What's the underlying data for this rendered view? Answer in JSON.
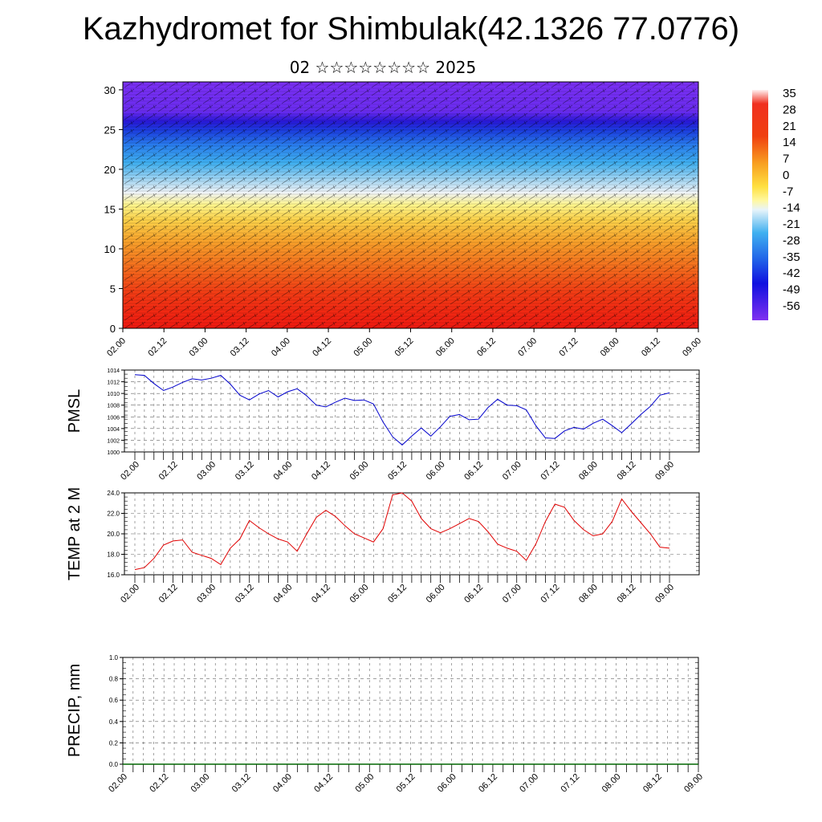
{
  "title": "Kazhydromet for Shimbulak(42.1326 77.0776)",
  "subtitle": "02 ☆☆☆☆☆☆☆☆ 2025",
  "time_labels": [
    "02.00",
    "02.12",
    "03.00",
    "03.12",
    "04.00",
    "04.12",
    "05.00",
    "05.12",
    "06.00",
    "06.12",
    "07.00",
    "07.12",
    "08.00",
    "08.12",
    "09.00"
  ],
  "precip_time_labels": [
    "02.00",
    "02.12",
    "03.00",
    "03.12",
    "04.00",
    "04.12",
    "05.00",
    "05.12",
    "06.00",
    "06.12",
    "07.00",
    "07.12",
    "08.00",
    "08.12",
    "09.00"
  ],
  "colorbar": {
    "labels": [
      "35",
      "28",
      "21",
      "14",
      "7",
      "0",
      "-7",
      "-14",
      "-21",
      "-28",
      "-35",
      "-42",
      "-49",
      "-56"
    ]
  },
  "chart_data": [
    {
      "type": "heatmap",
      "title": "",
      "xlabel": "",
      "ylabel": "",
      "x_categories": [
        "02.00",
        "02.12",
        "03.00",
        "03.12",
        "04.00",
        "04.12",
        "05.00",
        "05.12",
        "06.00",
        "06.12",
        "07.00",
        "07.12",
        "08.00",
        "08.12",
        "09.00"
      ],
      "ylim": [
        0,
        31
      ],
      "yticks": [
        "0",
        "5",
        "10",
        "15",
        "20",
        "25",
        "30"
      ],
      "colorbar_range": [
        -56,
        35
      ],
      "colors": {
        "cold": "#7b2cf0",
        "cool": "#3a7ff0",
        "mid": "#ffffff",
        "warm": "#ffd23c",
        "hot": "#e81e1e"
      },
      "temperature_by_height": [
        {
          "height": 0,
          "value": 33
        },
        {
          "height": 3,
          "value": 31
        },
        {
          "height": 6,
          "value": 25
        },
        {
          "height": 9,
          "value": 17
        },
        {
          "height": 12,
          "value": 8
        },
        {
          "height": 14,
          "value": 0
        },
        {
          "height": 16,
          "value": -7
        },
        {
          "height": 18,
          "value": -18
        },
        {
          "height": 20,
          "value": -28
        },
        {
          "height": 22,
          "value": -36
        },
        {
          "height": 24,
          "value": -45
        },
        {
          "height": 25,
          "value": -52
        },
        {
          "height": 27,
          "value": -54
        },
        {
          "height": 31,
          "value": -56
        }
      ],
      "grid": false
    },
    {
      "type": "line",
      "ylabel": "PMSL",
      "ylim": [
        1000,
        1014
      ],
      "yticks": [
        "1000",
        "1002",
        "1004",
        "1006",
        "1008",
        "1010",
        "1012",
        "1014"
      ],
      "color": "#0000cc",
      "x": [
        0,
        1,
        2,
        3,
        4,
        5,
        6,
        7,
        8,
        9,
        10,
        11,
        12,
        13,
        14,
        15,
        16,
        17,
        18,
        19,
        20,
        21,
        22,
        23,
        24,
        25,
        26,
        27,
        28,
        29,
        30,
        31,
        32,
        33,
        34,
        35,
        36,
        37,
        38,
        39,
        40,
        41,
        42,
        43,
        44,
        45,
        46,
        47,
        48,
        49,
        50,
        51,
        52,
        53,
        54,
        55,
        56
      ],
      "values": [
        1013.2,
        1013.1,
        1011.7,
        1010.5,
        1011.1,
        1011.9,
        1012.5,
        1012.3,
        1012.6,
        1013.1,
        1011.6,
        1009.7,
        1008.9,
        1009.9,
        1010.5,
        1009.4,
        1010.3,
        1010.8,
        1009.6,
        1008.0,
        1007.7,
        1008.5,
        1009.2,
        1008.8,
        1008.9,
        1008.2,
        1005.1,
        1002.6,
        1001.2,
        1002.7,
        1004.1,
        1002.7,
        1004.3,
        1006.1,
        1006.4,
        1005.5,
        1005.6,
        1007.6,
        1009.0,
        1008.0,
        1007.9,
        1007.2,
        1004.5,
        1002.4,
        1002.3,
        1003.6,
        1004.2,
        1003.9,
        1004.9,
        1005.6,
        1004.5,
        1003.3,
        1004.8,
        1006.4,
        1007.8,
        1009.7,
        1010.1
      ]
    },
    {
      "type": "line",
      "ylabel": "TEMP at 2 M",
      "ylim": [
        16,
        24
      ],
      "yticks": [
        "16.0",
        "18.0",
        "20.0",
        "22.0",
        "24.0"
      ],
      "color": "#e00000",
      "x": [
        0,
        1,
        2,
        3,
        4,
        5,
        6,
        7,
        8,
        9,
        10,
        11,
        12,
        13,
        14,
        15,
        16,
        17,
        18,
        19,
        20,
        21,
        22,
        23,
        24,
        25,
        26,
        27,
        28,
        29,
        30,
        31,
        32,
        33,
        34,
        35,
        36,
        37,
        38,
        39,
        40,
        41,
        42,
        43,
        44,
        45,
        46,
        47,
        48,
        49,
        50,
        51,
        52,
        53,
        54,
        55,
        56
      ],
      "values": [
        16.5,
        16.7,
        17.6,
        18.9,
        19.3,
        19.4,
        18.2,
        17.9,
        17.6,
        17.0,
        18.6,
        19.5,
        21.3,
        20.6,
        20.0,
        19.5,
        19.2,
        18.3,
        20.0,
        21.6,
        22.3,
        21.7,
        20.8,
        20.0,
        19.6,
        19.2,
        20.5,
        23.8,
        24.0,
        23.2,
        21.5,
        20.5,
        20.1,
        20.5,
        21.0,
        21.5,
        21.2,
        20.2,
        19.0,
        18.6,
        18.3,
        17.4,
        19.0,
        21.2,
        22.9,
        22.6,
        21.3,
        20.4,
        19.8,
        20.0,
        21.2,
        23.4,
        22.2,
        21.1,
        20.0,
        18.7,
        18.6
      ]
    },
    {
      "type": "line",
      "ylabel": "PRECIP, mm",
      "ylim": [
        0,
        1
      ],
      "yticks": [
        "0.0",
        "0.2",
        "0.4",
        "0.6",
        "0.8",
        "1.0"
      ],
      "color": "#006600",
      "values": [
        0,
        0,
        0,
        0,
        0,
        0,
        0,
        0,
        0,
        0,
        0,
        0,
        0,
        0,
        0,
        0,
        0,
        0,
        0,
        0,
        0,
        0,
        0,
        0,
        0,
        0,
        0,
        0,
        0,
        0,
        0,
        0,
        0,
        0,
        0,
        0,
        0,
        0,
        0,
        0,
        0,
        0,
        0,
        0,
        0,
        0,
        0,
        0,
        0,
        0,
        0,
        0,
        0,
        0,
        0,
        0,
        0,
        0,
        0,
        0,
        0,
        0,
        0,
        0,
        0,
        0,
        0,
        0,
        0,
        0,
        0,
        0,
        0,
        0,
        0,
        0,
        0,
        0,
        0,
        0,
        0,
        0,
        0,
        0,
        0
      ]
    }
  ]
}
